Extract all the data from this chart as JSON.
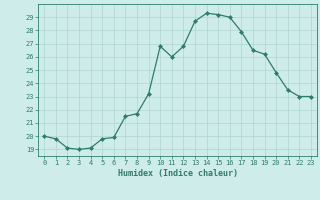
{
  "x": [
    0,
    1,
    2,
    3,
    4,
    5,
    6,
    7,
    8,
    9,
    10,
    11,
    12,
    13,
    14,
    15,
    16,
    17,
    18,
    19,
    20,
    21,
    22,
    23
  ],
  "y": [
    20.0,
    19.8,
    19.1,
    19.0,
    19.1,
    19.8,
    19.9,
    21.5,
    21.7,
    23.2,
    26.8,
    26.0,
    26.8,
    28.7,
    29.3,
    29.2,
    29.0,
    27.9,
    26.5,
    26.2,
    24.8,
    23.5,
    23.0,
    23.0
  ],
  "line_color": "#2d7d6e",
  "marker": "D",
  "marker_size": 2.0,
  "bg_color": "#ceecea",
  "grid_color": "#b0d4d0",
  "xlabel": "Humidex (Indice chaleur)",
  "xlim": [
    -0.5,
    23.5
  ],
  "ylim": [
    18.5,
    30.0
  ],
  "yticks": [
    19,
    20,
    21,
    22,
    23,
    24,
    25,
    26,
    27,
    28,
    29
  ],
  "xticks": [
    0,
    1,
    2,
    3,
    4,
    5,
    6,
    7,
    8,
    9,
    10,
    11,
    12,
    13,
    14,
    15,
    16,
    17,
    18,
    19,
    20,
    21,
    22,
    23
  ],
  "font_color": "#2d7d6e",
  "tick_fontsize": 5.0,
  "xlabel_fontsize": 6.0
}
